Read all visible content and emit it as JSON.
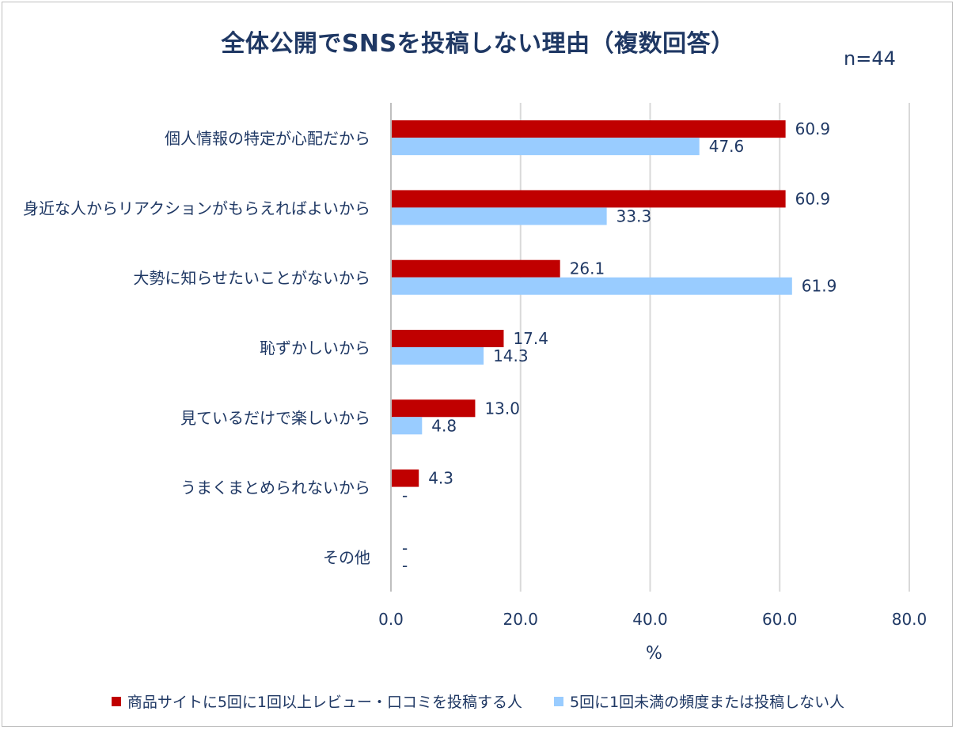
{
  "title": "全体公開でSNSを投稿しない理由（複数回答）",
  "n_label": "n=44",
  "colors": {
    "series1": "#c00000",
    "series2": "#99ccff",
    "text": "#1f3864",
    "grid": "#d9d9d9"
  },
  "chart_data": {
    "type": "bar",
    "orientation": "horizontal",
    "categories": [
      "個人情報の特定が心配だから",
      "身近な人からリアクションがもらえればよいから",
      "大勢に知らせたいことがないから",
      "恥ずかしいから",
      "見ているだけで楽しいから",
      "うまくまとめられないから",
      "その他"
    ],
    "series": [
      {
        "name": "商品サイトに5回に1回以上レビュー・口コミを投稿する人",
        "values": [
          60.9,
          60.9,
          26.1,
          17.4,
          13.0,
          4.3,
          null
        ],
        "labels": [
          "60.9",
          "60.9",
          "26.1",
          "17.4",
          "13.0",
          "4.3",
          "-"
        ]
      },
      {
        "name": "5回に1回未満の頻度または投稿しない人",
        "values": [
          47.6,
          33.3,
          61.9,
          14.3,
          4.8,
          null,
          null
        ],
        "labels": [
          "47.6",
          "33.3",
          "61.9",
          "14.3",
          "4.8",
          "-",
          "-"
        ]
      }
    ],
    "xlabel": "%",
    "xlim": [
      0,
      80
    ],
    "xticks": [
      "0.0",
      "20.0",
      "40.0",
      "60.0",
      "80.0"
    ],
    "grid": true,
    "legend_position": "bottom"
  }
}
